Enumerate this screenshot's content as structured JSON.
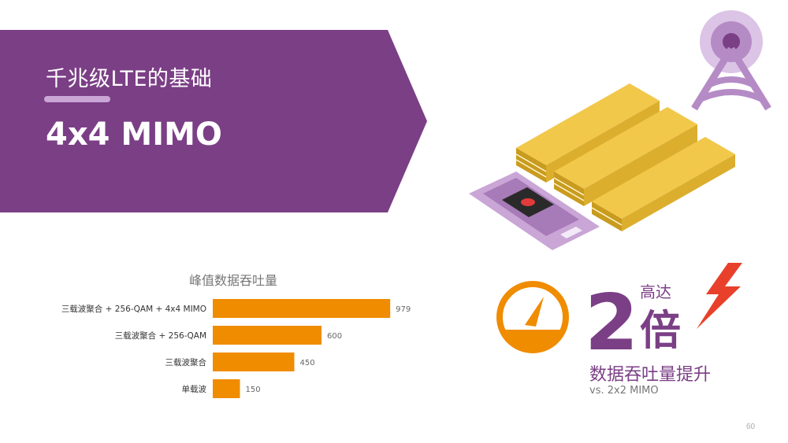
{
  "header": {
    "subtitle": "千兆级LTE的基础",
    "title": "4x4 MIMO"
  },
  "colors": {
    "purple": "#7b3f86",
    "light_purple": "#c9a6d6",
    "orange": "#f08c00",
    "gold": "#f2c84b",
    "red": "#e8402a"
  },
  "chart_data": {
    "type": "bar",
    "orientation": "horizontal",
    "title": "峰值数据吞吐量",
    "categories": [
      "三载波聚合 + 256-QAM + 4x4 MIMO",
      "三载波聚合 + 256-QAM",
      "三载波聚合",
      "单载波"
    ],
    "values": [
      979,
      600,
      450,
      150
    ],
    "xlim": [
      0,
      1000
    ],
    "grid": false,
    "legend": "none"
  },
  "callout": {
    "prefix": "高达",
    "number": "2",
    "unit": "倍",
    "text": "数据吞吐量提升",
    "comparison": "vs. 2x2 MIMO"
  },
  "icons": [
    "tower-icon",
    "smartphone-icon",
    "gauge-icon",
    "lightning-icon"
  ],
  "page_number": "60"
}
